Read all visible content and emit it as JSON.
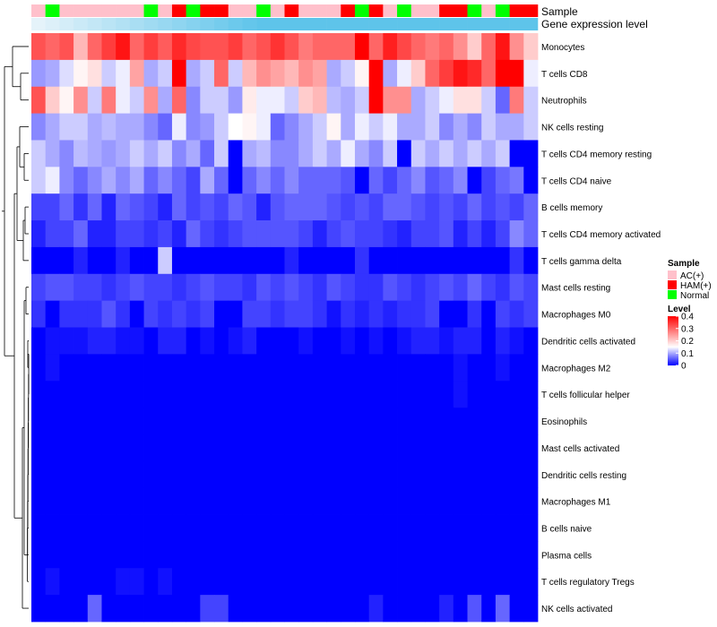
{
  "chart_data": {
    "type": "heatmap",
    "title": "",
    "annotation_labels": {
      "sample": "Sample",
      "gene_expression": "Gene expression level"
    },
    "legend": {
      "sample_title": "Sample",
      "sample_items": [
        {
          "label": "AC(+)",
          "color": "#FFC0CB"
        },
        {
          "label": "HAM(+)",
          "color": "#FF0000"
        },
        {
          "label": "Normal",
          "color": "#00FF00"
        }
      ],
      "level_title": "Level",
      "level_ticks": [
        "0.4",
        "0.3",
        "0.2",
        "0.1",
        "0"
      ],
      "level_range": [
        0,
        0.4
      ],
      "placement": "right"
    },
    "colorscale": {
      "low": "#0000FF",
      "mid": "#FFFFFF",
      "high": "#FF0000",
      "mid_value": 0.15
    },
    "sample_groups": [
      "AC(+)",
      "Normal",
      "AC(+)",
      "AC(+)",
      "AC(+)",
      "AC(+)",
      "AC(+)",
      "AC(+)",
      "Normal",
      "AC(+)",
      "HAM(+)",
      "Normal",
      "HAM(+)",
      "HAM(+)",
      "AC(+)",
      "AC(+)",
      "Normal",
      "AC(+)",
      "HAM(+)",
      "AC(+)",
      "AC(+)",
      "AC(+)",
      "HAM(+)",
      "Normal",
      "HAM(+)",
      "AC(+)",
      "Normal",
      "AC(+)",
      "AC(+)",
      "HAM(+)",
      "HAM(+)",
      "Normal",
      "AC(+)",
      "Normal",
      "HAM(+)",
      "HAM(+)"
    ],
    "gene_expression_values": [
      0.02,
      0.04,
      0.06,
      0.08,
      0.1,
      0.12,
      0.14,
      0.16,
      0.18,
      0.2,
      0.22,
      0.24,
      0.26,
      0.28,
      0.3,
      0.32,
      0.34,
      0.36,
      0.38,
      0.4,
      0.42,
      0.44,
      0.46,
      0.48,
      0.5,
      0.52,
      0.54,
      0.56,
      0.58,
      0.6,
      0.62,
      0.64,
      0.66,
      0.68,
      0.7,
      0.72
    ],
    "rows": [
      {
        "label": "Monocytes",
        "values": [
          0.32,
          0.3,
          0.32,
          0.22,
          0.3,
          0.34,
          0.38,
          0.3,
          0.34,
          0.31,
          0.36,
          0.33,
          0.32,
          0.32,
          0.34,
          0.3,
          0.32,
          0.35,
          0.32,
          0.28,
          0.3,
          0.3,
          0.3,
          0.42,
          0.3,
          0.37,
          0.33,
          0.3,
          0.28,
          0.3,
          0.26,
          0.2,
          0.3,
          0.38,
          0.26,
          0.2
        ]
      },
      {
        "label": "T cells CD8",
        "values": [
          0.09,
          0.1,
          0.13,
          0.16,
          0.18,
          0.12,
          0.14,
          0.24,
          0.1,
          0.12,
          0.4,
          0.1,
          0.12,
          0.3,
          0.12,
          0.22,
          0.26,
          0.24,
          0.22,
          0.26,
          0.24,
          0.1,
          0.12,
          0.16,
          0.4,
          0.1,
          0.14,
          0.2,
          0.3,
          0.34,
          0.38,
          0.36,
          0.3,
          0.42,
          0.44,
          0.14
        ]
      },
      {
        "label": "Neutrophils",
        "values": [
          0.32,
          0.2,
          0.16,
          0.26,
          0.12,
          0.28,
          0.14,
          0.12,
          0.26,
          0.1,
          0.3,
          0.08,
          0.12,
          0.12,
          0.09,
          0.17,
          0.14,
          0.14,
          0.12,
          0.2,
          0.22,
          0.11,
          0.1,
          0.12,
          0.42,
          0.26,
          0.26,
          0.1,
          0.12,
          0.14,
          0.18,
          0.18,
          0.12,
          0.06,
          0.28,
          0.12
        ]
      },
      {
        "label": "NK cells resting",
        "values": [
          0.08,
          0.1,
          0.12,
          0.12,
          0.1,
          0.11,
          0.1,
          0.1,
          0.08,
          0.06,
          0.14,
          0.08,
          0.09,
          0.12,
          0.15,
          0.16,
          0.14,
          0.06,
          0.08,
          0.1,
          0.12,
          0.16,
          0.1,
          0.14,
          0.12,
          0.14,
          0.1,
          0.1,
          0.12,
          0.08,
          0.1,
          0.08,
          0.12,
          0.1,
          0.1,
          0.12
        ]
      },
      {
        "label": "T cells CD4 memory resting",
        "values": [
          0.12,
          0.1,
          0.08,
          0.11,
          0.1,
          0.09,
          0.1,
          0.12,
          0.1,
          0.12,
          0.08,
          0.1,
          0.06,
          0.12,
          0.0,
          0.1,
          0.11,
          0.08,
          0.08,
          0.1,
          0.12,
          0.1,
          0.14,
          0.1,
          0.08,
          0.12,
          0.0,
          0.12,
          0.1,
          0.12,
          0.1,
          0.12,
          0.1,
          0.12,
          0.0,
          0.0
        ]
      },
      {
        "label": "T cells CD4 naive",
        "values": [
          0.12,
          0.14,
          0.08,
          0.06,
          0.08,
          0.1,
          0.08,
          0.1,
          0.06,
          0.08,
          0.06,
          0.04,
          0.1,
          0.06,
          0.0,
          0.06,
          0.08,
          0.06,
          0.08,
          0.06,
          0.06,
          0.06,
          0.05,
          0.0,
          0.06,
          0.04,
          0.06,
          0.08,
          0.05,
          0.06,
          0.08,
          0.0,
          0.04,
          0.06,
          0.07,
          0.0
        ]
      },
      {
        "label": "B cells memory",
        "values": [
          0.04,
          0.04,
          0.06,
          0.03,
          0.06,
          0.02,
          0.06,
          0.05,
          0.04,
          0.02,
          0.06,
          0.04,
          0.05,
          0.04,
          0.06,
          0.05,
          0.02,
          0.05,
          0.06,
          0.06,
          0.06,
          0.05,
          0.04,
          0.05,
          0.04,
          0.06,
          0.06,
          0.05,
          0.04,
          0.05,
          0.04,
          0.06,
          0.04,
          0.05,
          0.04,
          0.06
        ]
      },
      {
        "label": "T cells CD4 memory activated",
        "values": [
          0.02,
          0.04,
          0.04,
          0.06,
          0.02,
          0.02,
          0.04,
          0.04,
          0.03,
          0.04,
          0.02,
          0.06,
          0.04,
          0.03,
          0.04,
          0.05,
          0.05,
          0.05,
          0.05,
          0.04,
          0.02,
          0.04,
          0.05,
          0.04,
          0.04,
          0.03,
          0.02,
          0.04,
          0.04,
          0.05,
          0.02,
          0.04,
          0.02,
          0.04,
          0.08,
          0.06
        ]
      },
      {
        "label": "T cells gamma delta",
        "values": [
          0.0,
          0.0,
          0.0,
          0.02,
          0.0,
          0.0,
          0.02,
          0.0,
          0.0,
          0.12,
          0.0,
          0.0,
          0.0,
          0.0,
          0.0,
          0.0,
          0.0,
          0.0,
          0.02,
          0.0,
          0.0,
          0.0,
          0.0,
          0.03,
          0.0,
          0.0,
          0.0,
          0.0,
          0.0,
          0.0,
          0.0,
          0.0,
          0.0,
          0.0,
          0.03,
          0.0
        ]
      },
      {
        "label": "Mast cells resting",
        "values": [
          0.04,
          0.05,
          0.05,
          0.04,
          0.04,
          0.03,
          0.04,
          0.05,
          0.04,
          0.04,
          0.03,
          0.04,
          0.05,
          0.04,
          0.04,
          0.03,
          0.05,
          0.04,
          0.05,
          0.04,
          0.03,
          0.05,
          0.04,
          0.03,
          0.03,
          0.05,
          0.04,
          0.03,
          0.04,
          0.05,
          0.04,
          0.06,
          0.04,
          0.03,
          0.05,
          0.04
        ]
      },
      {
        "label": "Macrophages M0",
        "values": [
          0.03,
          0.0,
          0.03,
          0.03,
          0.03,
          0.05,
          0.03,
          0.0,
          0.04,
          0.03,
          0.04,
          0.03,
          0.04,
          0.0,
          0.0,
          0.04,
          0.04,
          0.03,
          0.04,
          0.04,
          0.03,
          0.01,
          0.03,
          0.02,
          0.03,
          0.02,
          0.03,
          0.03,
          0.04,
          0.0,
          0.0,
          0.03,
          0.0,
          0.04,
          0.03,
          0.04
        ]
      },
      {
        "label": "Dendritic cells activated",
        "values": [
          0.0,
          0.01,
          0.01,
          0.01,
          0.02,
          0.02,
          0.01,
          0.01,
          0.0,
          0.02,
          0.02,
          0.0,
          0.01,
          0.0,
          0.01,
          0.02,
          0.0,
          0.0,
          0.0,
          0.01,
          0.0,
          0.0,
          0.01,
          0.0,
          0.01,
          0.0,
          0.01,
          0.02,
          0.02,
          0.01,
          0.02,
          0.02,
          0.0,
          0.02,
          0.01,
          0.0
        ]
      },
      {
        "label": "Macrophages M2",
        "values": [
          0.0,
          0.01,
          0.0,
          0.0,
          0.0,
          0.0,
          0.0,
          0.0,
          0.0,
          0.0,
          0.0,
          0.0,
          0.0,
          0.0,
          0.0,
          0.0,
          0.0,
          0.0,
          0.0,
          0.0,
          0.0,
          0.0,
          0.0,
          0.0,
          0.0,
          0.0,
          0.0,
          0.0,
          0.0,
          0.0,
          0.01,
          0.0,
          0.0,
          0.01,
          0.0,
          0.0
        ]
      },
      {
        "label": "T cells follicular helper",
        "values": [
          0.0,
          0.0,
          0.0,
          0.0,
          0.0,
          0.0,
          0.0,
          0.0,
          0.0,
          0.0,
          0.0,
          0.0,
          0.0,
          0.0,
          0.0,
          0.0,
          0.0,
          0.0,
          0.0,
          0.0,
          0.0,
          0.0,
          0.0,
          0.0,
          0.0,
          0.0,
          0.0,
          0.0,
          0.0,
          0.0,
          0.01,
          0.0,
          0.0,
          0.0,
          0.0,
          0.0
        ]
      },
      {
        "label": "Eosinophils",
        "values": [
          0.0,
          0.0,
          0.0,
          0.0,
          0.0,
          0.0,
          0.0,
          0.0,
          0.0,
          0.0,
          0.0,
          0.0,
          0.0,
          0.0,
          0.0,
          0.0,
          0.0,
          0.0,
          0.0,
          0.0,
          0.0,
          0.0,
          0.0,
          0.0,
          0.0,
          0.0,
          0.0,
          0.0,
          0.0,
          0.0,
          0.0,
          0.0,
          0.0,
          0.0,
          0.0,
          0.0
        ]
      },
      {
        "label": "Mast cells activated",
        "values": [
          0.0,
          0.0,
          0.0,
          0.0,
          0.0,
          0.0,
          0.0,
          0.0,
          0.0,
          0.0,
          0.0,
          0.0,
          0.0,
          0.0,
          0.0,
          0.0,
          0.0,
          0.0,
          0.0,
          0.0,
          0.0,
          0.0,
          0.0,
          0.0,
          0.0,
          0.0,
          0.0,
          0.0,
          0.0,
          0.0,
          0.0,
          0.0,
          0.0,
          0.0,
          0.0,
          0.0
        ]
      },
      {
        "label": "Dendritic cells resting",
        "values": [
          0.0,
          0.0,
          0.0,
          0.0,
          0.0,
          0.0,
          0.0,
          0.0,
          0.0,
          0.0,
          0.0,
          0.0,
          0.0,
          0.0,
          0.0,
          0.0,
          0.0,
          0.0,
          0.0,
          0.0,
          0.0,
          0.0,
          0.0,
          0.0,
          0.0,
          0.0,
          0.0,
          0.0,
          0.0,
          0.0,
          0.0,
          0.0,
          0.0,
          0.0,
          0.0,
          0.0
        ]
      },
      {
        "label": "Macrophages M1",
        "values": [
          0.0,
          0.0,
          0.0,
          0.0,
          0.0,
          0.0,
          0.0,
          0.0,
          0.0,
          0.0,
          0.0,
          0.0,
          0.0,
          0.0,
          0.0,
          0.0,
          0.0,
          0.0,
          0.0,
          0.0,
          0.0,
          0.0,
          0.0,
          0.0,
          0.0,
          0.0,
          0.0,
          0.0,
          0.0,
          0.0,
          0.0,
          0.0,
          0.0,
          0.0,
          0.0,
          0.0
        ]
      },
      {
        "label": "B cells naive",
        "values": [
          0.0,
          0.0,
          0.0,
          0.0,
          0.0,
          0.0,
          0.0,
          0.0,
          0.0,
          0.0,
          0.0,
          0.0,
          0.0,
          0.0,
          0.0,
          0.0,
          0.0,
          0.0,
          0.0,
          0.0,
          0.0,
          0.0,
          0.0,
          0.0,
          0.0,
          0.0,
          0.0,
          0.0,
          0.0,
          0.0,
          0.0,
          0.0,
          0.0,
          0.0,
          0.0,
          0.0
        ]
      },
      {
        "label": "Plasma cells",
        "values": [
          0.0,
          0.0,
          0.0,
          0.0,
          0.0,
          0.0,
          0.0,
          0.0,
          0.0,
          0.0,
          0.0,
          0.0,
          0.0,
          0.0,
          0.0,
          0.0,
          0.0,
          0.0,
          0.0,
          0.0,
          0.0,
          0.0,
          0.0,
          0.0,
          0.0,
          0.0,
          0.0,
          0.0,
          0.0,
          0.0,
          0.0,
          0.0,
          0.0,
          0.0,
          0.0,
          0.0
        ]
      },
      {
        "label": "T cells regulatory  Tregs",
        "values": [
          0.0,
          0.01,
          0.0,
          0.0,
          0.0,
          0.0,
          0.01,
          0.01,
          0.0,
          0.01,
          0.0,
          0.0,
          0.0,
          0.0,
          0.0,
          0.0,
          0.0,
          0.0,
          0.0,
          0.0,
          0.0,
          0.0,
          0.0,
          0.0,
          0.0,
          0.0,
          0.0,
          0.0,
          0.0,
          0.0,
          0.0,
          0.0,
          0.0,
          0.0,
          0.0,
          0.0
        ]
      },
      {
        "label": "NK cells activated",
        "values": [
          0.0,
          0.0,
          0.0,
          0.0,
          0.06,
          0.0,
          0.0,
          0.0,
          0.0,
          0.0,
          0.0,
          0.0,
          0.04,
          0.04,
          0.0,
          0.0,
          0.0,
          0.0,
          0.0,
          0.0,
          0.0,
          0.0,
          0.0,
          0.0,
          0.02,
          0.0,
          0.0,
          0.0,
          0.0,
          0.02,
          0.0,
          0.05,
          0.0,
          0.06,
          0.0,
          0.0
        ]
      }
    ],
    "dendrogram": "row clustering"
  }
}
